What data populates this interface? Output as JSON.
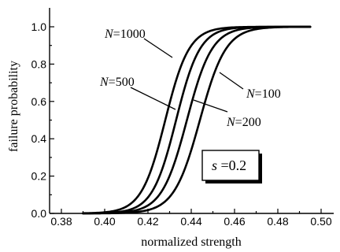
{
  "chart_data": {
    "type": "line",
    "xlabel": "normalized strength",
    "ylabel": "failure probability",
    "xlim": [
      0.38,
      0.5
    ],
    "ylim": [
      0.0,
      1.0
    ],
    "x_ticks": [
      "0.38",
      "0.40",
      "0.42",
      "0.44",
      "0.46",
      "0.48",
      "0.50"
    ],
    "y_ticks": [
      "0.0",
      "0.2",
      "0.4",
      "0.6",
      "0.8",
      "1.0"
    ],
    "grid": false,
    "series": [
      {
        "name": "N=1000",
        "name_parts": [
          "N",
          "=1000"
        ],
        "mid": 0.428,
        "width": 0.0055
      },
      {
        "name": "N=500",
        "name_parts": [
          "N",
          "=500"
        ],
        "mid": 0.433,
        "width": 0.0055
      },
      {
        "name": "N=200",
        "name_parts": [
          "N",
          "=200"
        ],
        "mid": 0.438,
        "width": 0.0058
      },
      {
        "name": "N=100",
        "name_parts": [
          "N",
          "=100"
        ],
        "mid": 0.444,
        "width": 0.006
      }
    ],
    "annotation": {
      "text": "s =0.2",
      "parts": [
        "s",
        " =0.2"
      ]
    }
  }
}
